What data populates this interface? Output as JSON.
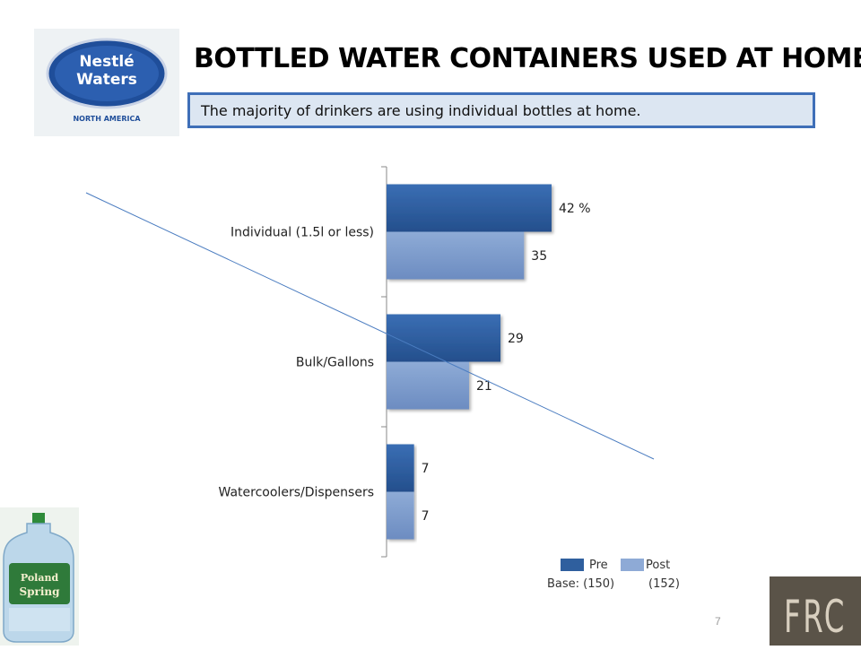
{
  "header": {
    "logo": {
      "brand": "Nestlé Waters",
      "region": "NORTH AMERICA"
    },
    "title": "BOTTLED WATER CONTAINERS USED AT HOME",
    "subtitle": "The majority of drinkers are using individual bottles at home."
  },
  "chart_data": {
    "type": "bar",
    "orientation": "horizontal",
    "categories": [
      "Individual (1.5l or less)",
      "Bulk/Gallons",
      "Watercoolers/Dispensers"
    ],
    "series": [
      {
        "name": "Pre",
        "values": [
          42,
          29,
          7
        ],
        "color": "#2f5f9e"
      },
      {
        "name": "Post",
        "values": [
          35,
          21,
          7
        ],
        "color": "#7c9ccd"
      }
    ],
    "value_labels": {
      "Pre": [
        "42 %",
        "29",
        "7"
      ],
      "Post": [
        "35",
        "21",
        "7"
      ]
    },
    "xlim": [
      0,
      100
    ],
    "grid": false,
    "legend_position": "bottom-right"
  },
  "legend": {
    "pre_label": "Pre",
    "post_label": "Post",
    "base_pre": "Base: (150)",
    "base_post": "(152)"
  },
  "product_image": {
    "label": "Poland Spring"
  },
  "footer": {
    "page_number": "7",
    "corner_logo": "FRC"
  }
}
